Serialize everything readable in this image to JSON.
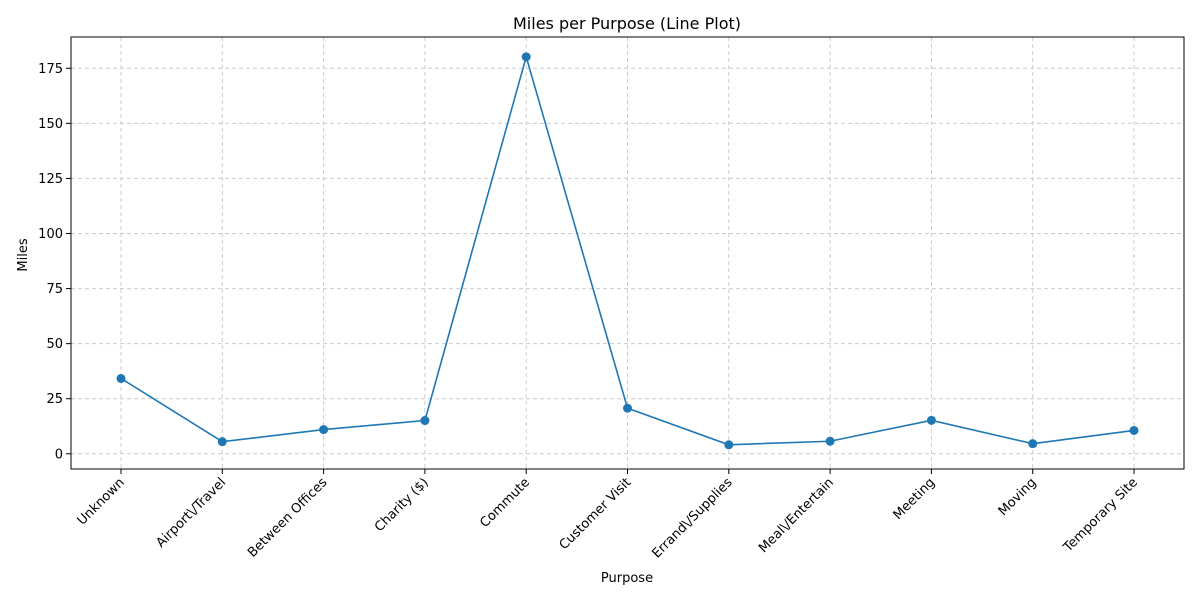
{
  "chart_data": {
    "type": "line",
    "title": "Miles per Purpose (Line Plot)",
    "xlabel": "Purpose",
    "ylabel": "Miles",
    "categories": [
      "Unknown",
      "Airport\\/Travel",
      "Between Offices",
      "Charity ($)",
      "Commute",
      "Customer Visit",
      "Errand\\/Supplies",
      "Meal\\/Entertain",
      "Meeting",
      "Moving",
      "Temporary Site"
    ],
    "series": [
      {
        "values": [
          34.2,
          5.5,
          11.0,
          15.1,
          180.2,
          20.7,
          4.1,
          5.7,
          15.2,
          4.6,
          10.6
        ]
      }
    ],
    "ylim": [
      -6.9,
      189.2
    ],
    "yticks": [
      0,
      25,
      50,
      75,
      100,
      125,
      150,
      175
    ],
    "grid": true,
    "line_color": "#1f77b4",
    "marker": "circle"
  }
}
